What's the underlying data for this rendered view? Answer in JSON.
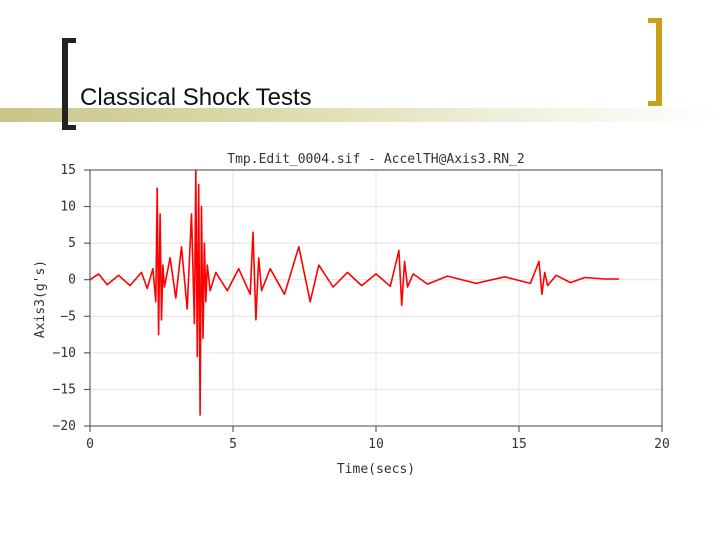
{
  "slide": {
    "title": "Classical Shock Tests"
  },
  "chart_data": {
    "type": "line",
    "title": "Tmp.Edit_0004.sif - AccelTH@Axis3.RN_2",
    "xlabel": "Time(secs)",
    "ylabel": "Axis3(g's)",
    "xlim": [
      0,
      20
    ],
    "ylim": [
      -20,
      15
    ],
    "x_ticks": [
      "0",
      "5",
      "10",
      "15",
      "20"
    ],
    "y_ticks": [
      "15",
      "10",
      "5",
      "0",
      "−5",
      "−10",
      "−15",
      "−20"
    ],
    "grid": true,
    "line_color": "#ff0000",
    "series": [
      {
        "x": [
          0.0,
          0.3,
          0.6,
          1.0,
          1.4,
          1.8,
          2.0,
          2.2,
          2.3,
          2.35,
          2.4,
          2.45,
          2.5,
          2.55,
          2.6,
          2.8,
          3.0,
          3.2,
          3.4,
          3.55,
          3.65,
          3.7,
          3.75,
          3.8,
          3.85,
          3.9,
          3.95,
          4.0,
          4.05,
          4.1,
          4.2,
          4.4,
          4.8,
          5.2,
          5.6,
          5.7,
          5.8,
          5.9,
          6.0,
          6.3,
          6.8,
          7.3,
          7.7,
          8.0,
          8.5,
          9.0,
          9.5,
          10.0,
          10.5,
          10.8,
          10.9,
          11.0,
          11.1,
          11.3,
          11.8,
          12.5,
          13.5,
          14.5,
          15.4,
          15.7,
          15.8,
          15.9,
          16.0,
          16.3,
          16.8,
          17.3,
          18.0,
          18.5
        ],
        "y": [
          0,
          0.8,
          -0.7,
          0.6,
          -0.8,
          1.0,
          -1.2,
          1.5,
          -3.0,
          12.5,
          -7.5,
          9.0,
          -5.5,
          2.0,
          -1.0,
          3.0,
          -2.5,
          4.5,
          -4.0,
          9.0,
          -6.0,
          15.0,
          -10.5,
          13.0,
          -18.5,
          10.0,
          -8.0,
          5.0,
          -3.0,
          2.0,
          -1.5,
          1.0,
          -1.5,
          1.5,
          -2.0,
          6.5,
          -5.5,
          3.0,
          -1.5,
          1.5,
          -2.0,
          4.5,
          -3.0,
          2.0,
          -1.0,
          1.0,
          -0.8,
          0.8,
          -0.9,
          4.0,
          -3.5,
          2.5,
          -1.0,
          0.8,
          -0.6,
          0.5,
          -0.5,
          0.4,
          -0.5,
          2.5,
          -2.0,
          1.0,
          -0.8,
          0.6,
          -0.4,
          0.3,
          0.1,
          0.1
        ]
      }
    ]
  }
}
